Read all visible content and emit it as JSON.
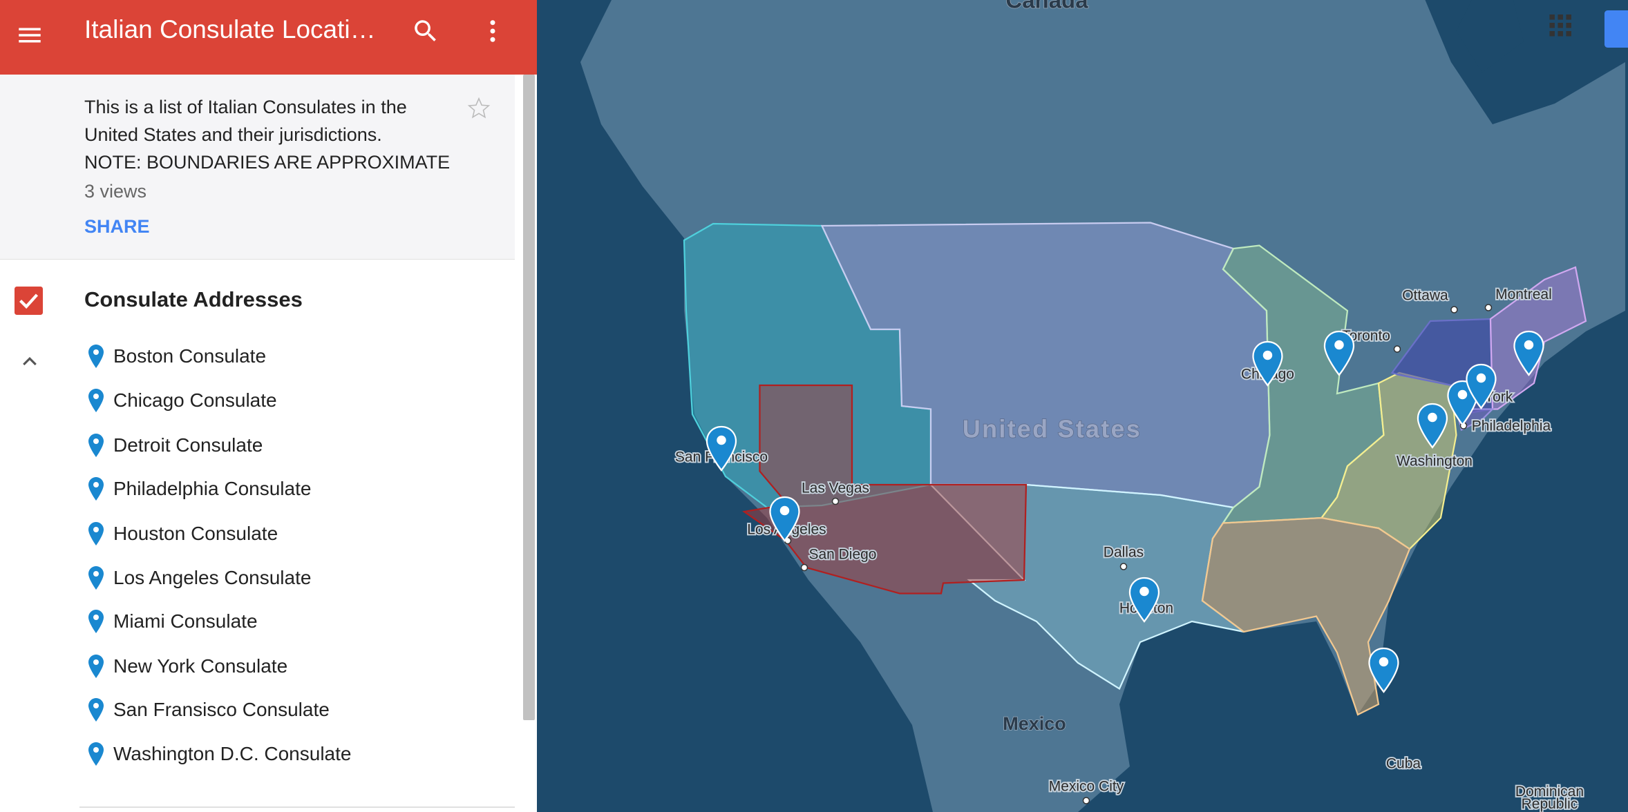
{
  "header": {
    "title": "Italian Consulate Locati…"
  },
  "description": {
    "lines": [
      "This is a list of Italian Consulates in the",
      "United States and their jurisdictions.",
      "NOTE: BOUNDARIES ARE APPROXIMATE"
    ],
    "views": "3 views",
    "share": "SHARE"
  },
  "layer": {
    "title": "Consulate Addresses",
    "items": [
      "Boston Consulate",
      "Chicago Consulate",
      "Detroit Consulate",
      "Philadelphia Consulate",
      "Houston Consulate",
      "Los Angeles Consulate",
      "Miami Consulate",
      "New York Consulate",
      "San Fransisco Consulate",
      "Washington D.C. Consulate"
    ]
  },
  "map": {
    "labels": [
      "Canada",
      "United States",
      "Mexico",
      "San Francisco",
      "Las Vegas",
      "Los Angeles",
      "San Diego",
      "Dallas",
      "Houston",
      "Chicago",
      "Toronto",
      "Ottawa",
      "Montreal",
      "New York",
      "Philadelphia",
      "Washington",
      "Mexico City",
      "Cuba",
      "Dominican",
      "Republic"
    ]
  }
}
